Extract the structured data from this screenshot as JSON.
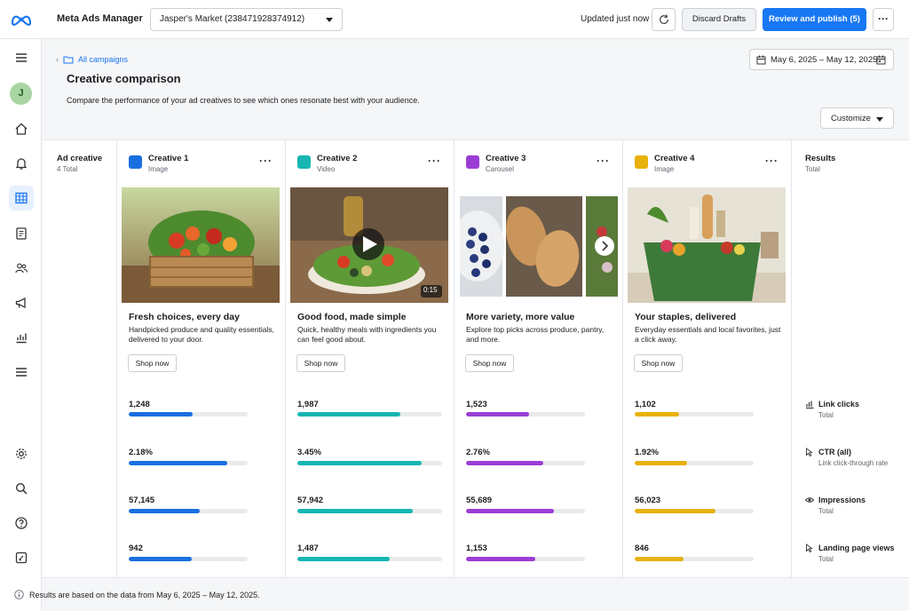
{
  "app": {
    "title": "Meta Ads Manager"
  },
  "account": {
    "selected": "Jasper's Market (238471928374912)"
  },
  "topbar": {
    "updated": "Updated just now",
    "discard_label": "Discard Drafts",
    "publish_label": "Review and publish (5)",
    "more": "···"
  },
  "sidebar": {
    "avatar_initial": "J"
  },
  "breadcrumb": {
    "label": "All campaigns"
  },
  "page": {
    "title": "Creative comparison",
    "subtitle": "Compare the performance of your ad creatives to see which ones resonate best with your audience."
  },
  "date_range": "May 6, 2025 – May 12, 2025",
  "customize_label": "Customize",
  "table": {
    "first_col": {
      "title": "Ad creative",
      "sub": "4 Total"
    },
    "results": {
      "title": "Results",
      "sub": "Total",
      "metrics": [
        {
          "name": "Link clicks",
          "sub": "Total",
          "icon": "bar-chart-icon"
        },
        {
          "name": "CTR (all)",
          "sub": "Link click-through rate",
          "icon": "cursor-icon"
        },
        {
          "name": "Impressions",
          "sub": "Total",
          "icon": "eye-icon"
        },
        {
          "name": "Landing page views",
          "sub": "Total",
          "icon": "cursor-icon"
        }
      ]
    },
    "creatives": [
      {
        "name": "Creative 1",
        "type": "Image",
        "color": "#1a6fe0",
        "headline": "Fresh choices, every day",
        "description": "Handpicked produce and quality essentials, delivered to your door.",
        "cta": "Shop now",
        "metrics": [
          "1,248",
          "2.18%",
          "57,145",
          "942"
        ],
        "fills": [
          0.54,
          0.83,
          0.6,
          0.53
        ]
      },
      {
        "name": "Creative 2",
        "type": "Video",
        "color": "#17b6b2",
        "headline": "Good food, made simple",
        "description": "Quick, healthy meals with ingredients you can feel good about.",
        "cta": "Shop now",
        "duration": "0:15",
        "metrics": [
          "1,987",
          "3.45%",
          "57,942",
          "1,487"
        ],
        "fills": [
          0.71,
          0.86,
          0.8,
          0.64
        ]
      },
      {
        "name": "Creative 3",
        "type": "Carousel",
        "color": "#9a3ed6",
        "headline": "More variety, more value",
        "description": "Explore top picks across produce, pantry, and more.",
        "cta": "Shop now",
        "metrics": [
          "1,523",
          "2.76%",
          "55,689",
          "1,153"
        ],
        "fills": [
          0.53,
          0.65,
          0.74,
          0.58
        ]
      },
      {
        "name": "Creative 4",
        "type": "Image",
        "color": "#e8b10c",
        "headline": "Your staples, delivered",
        "description": "Everyday essentials and local favorites, just a click away.",
        "cta": "Shop now",
        "metrics": [
          "1,102",
          "1.92%",
          "56,023",
          "846"
        ],
        "fills": [
          0.37,
          0.44,
          0.68,
          0.41
        ]
      }
    ]
  },
  "footer": {
    "note": "Results are based on the data from May 6, 2025 – May 12, 2025."
  }
}
